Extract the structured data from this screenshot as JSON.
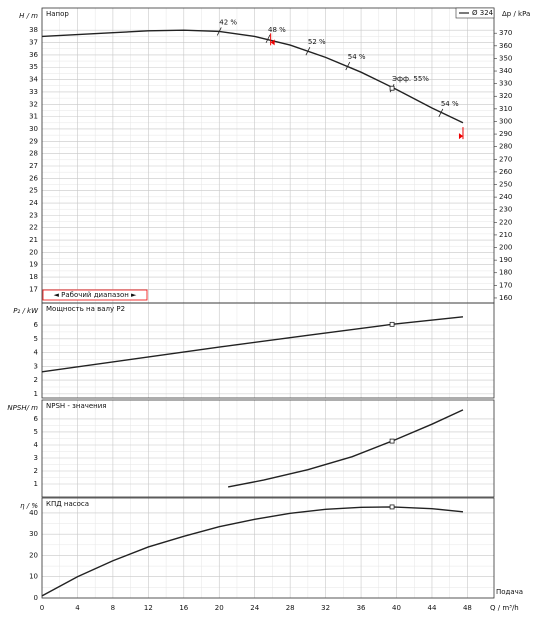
{
  "chart_data": [
    {
      "type": "line",
      "title": "Напор",
      "ylabel": "H / m",
      "y2label": "Δp / kPa",
      "xlim": [
        0,
        51
      ],
      "xticks": [
        0,
        4,
        8,
        12,
        16,
        20,
        24,
        28,
        32,
        36,
        40,
        44,
        48
      ],
      "ylim": [
        15.9,
        39.8
      ],
      "yticks": [
        17,
        18,
        19,
        20,
        21,
        22,
        23,
        24,
        25,
        26,
        27,
        28,
        29,
        30,
        31,
        32,
        33,
        34,
        35,
        36,
        37,
        38
      ],
      "y2lim": [
        156,
        390
      ],
      "y2ticks": [
        160,
        170,
        180,
        190,
        200,
        210,
        220,
        230,
        240,
        250,
        260,
        270,
        280,
        290,
        300,
        310,
        320,
        330,
        340,
        350,
        360,
        370
      ],
      "grid": true,
      "legend": "top-right",
      "x": [
        0,
        4,
        8,
        12,
        16,
        20,
        24,
        28,
        32,
        36,
        40,
        44,
        47.5
      ],
      "series": [
        {
          "name": "Ø 324",
          "color": "#222222",
          "values": [
            37.5,
            37.65,
            37.8,
            37.95,
            38.0,
            37.9,
            37.5,
            36.8,
            35.8,
            34.6,
            33.2,
            31.7,
            30.5
          ]
        }
      ],
      "annotations": [
        {
          "x": 20,
          "y": 37.9,
          "label": "42 %"
        },
        {
          "x": 25.5,
          "y": 37.3,
          "label": "48 %"
        },
        {
          "x": 30,
          "y": 36.3,
          "label": "52 %"
        },
        {
          "x": 34.5,
          "y": 35.1,
          "label": "54 %"
        },
        {
          "x": 39.5,
          "y": 33.3,
          "label": "Эфф.  55%"
        },
        {
          "x": 45,
          "y": 31.3,
          "label": "54 %"
        }
      ],
      "duty_point": {
        "x": 39.5,
        "y": 33.3
      },
      "operating_range": [
        25.8,
        47.5
      ],
      "range_label": "◄ Рабочий диапазон ►"
    },
    {
      "type": "line",
      "title": "Мощность на валу P2",
      "ylabel": "P₂ / kW",
      "xlim": [
        0,
        51
      ],
      "xticks": [
        0,
        4,
        8,
        12,
        16,
        20,
        24,
        28,
        32,
        36,
        40,
        44,
        48
      ],
      "ylim": [
        0.7,
        7.6
      ],
      "yticks": [
        1,
        2,
        3,
        4,
        5,
        6
      ],
      "grid": true,
      "x": [
        0,
        10,
        20,
        30,
        39.5,
        47.5
      ],
      "color": "#222222",
      "values": [
        2.6,
        3.5,
        4.4,
        5.25,
        6.05,
        6.6
      ],
      "duty_point": {
        "x": 39.5,
        "y": 6.05
      }
    },
    {
      "type": "line",
      "title": "NPSH - значения",
      "ylabel": "NPSH/ m",
      "xlim": [
        0,
        51
      ],
      "xticks": [
        0,
        4,
        8,
        12,
        16,
        20,
        24,
        28,
        32,
        36,
        40,
        44,
        48
      ],
      "ylim": [
        0,
        7.46
      ],
      "yticks": [
        1,
        2,
        3,
        4,
        5,
        6
      ],
      "grid": true,
      "x": [
        21,
        25,
        30,
        35,
        39.5,
        44,
        47.5
      ],
      "color": "#222222",
      "values": [
        0.77,
        1.3,
        2.1,
        3.1,
        4.3,
        5.6,
        6.7
      ],
      "duty_point": {
        "x": 39.5,
        "y": 4.3
      }
    },
    {
      "type": "line",
      "title": "КПД насоса",
      "ylabel": "η / %",
      "xlim": [
        0,
        51
      ],
      "xticks": [
        0,
        4,
        8,
        12,
        16,
        20,
        24,
        28,
        32,
        36,
        40,
        44,
        48
      ],
      "ylim": [
        0,
        47
      ],
      "yticks": [
        0,
        10,
        20,
        30,
        40
      ],
      "grid": true,
      "xlabel": "Q / m³/h",
      "note": "Подача",
      "x": [
        0,
        4,
        8,
        12,
        16,
        20,
        24,
        28,
        32,
        36,
        39.5,
        44,
        47.5
      ],
      "color": "#222222",
      "values": [
        1,
        10,
        17.5,
        24,
        29,
        33.5,
        37,
        39.8,
        41.7,
        42.6,
        42.8,
        42,
        40.5
      ],
      "duty_point": {
        "x": 39.5,
        "y": 42.8
      }
    }
  ]
}
